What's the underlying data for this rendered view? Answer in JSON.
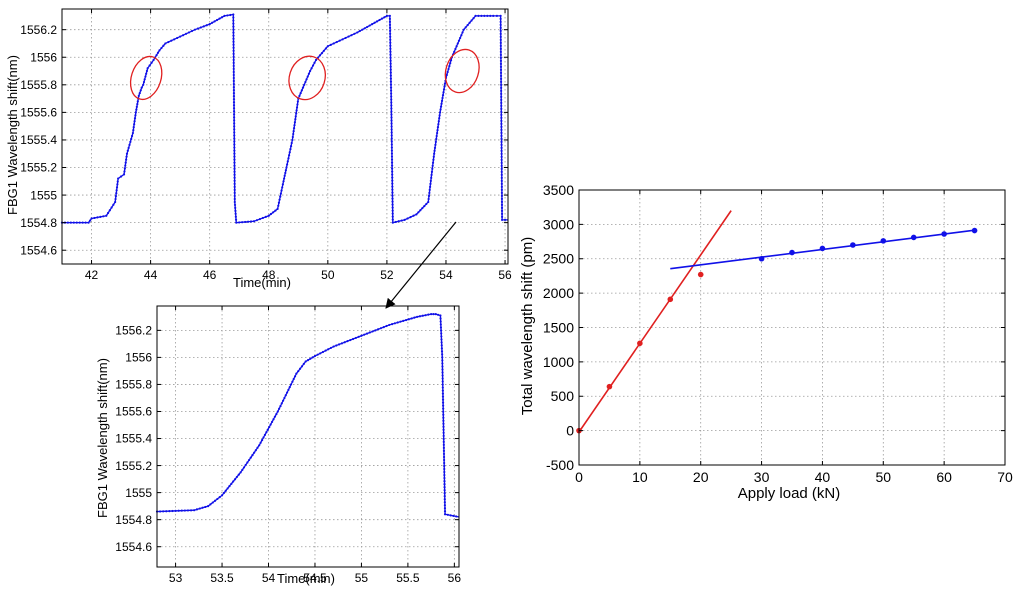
{
  "chart_data": [
    {
      "type": "line",
      "xlabel": "Time(min)",
      "ylabel": "FBG1 Wavelength shift(nm)",
      "xlim": [
        41,
        56.1
      ],
      "ylim": [
        1554.5,
        1556.35
      ],
      "xticks": [
        42,
        44,
        46,
        48,
        50,
        52,
        54,
        56
      ],
      "yticks": [
        1554.6,
        1554.8,
        1555,
        1555.2,
        1555.4,
        1555.6,
        1555.8,
        1556,
        1556.2
      ],
      "ytick_labels": [
        "1554.6",
        "1554.8",
        "1555",
        "1555.2",
        "1555.4",
        "1555.6",
        "1555.8",
        "1556",
        "1556.2"
      ],
      "grid": true,
      "series": [
        {
          "color": "#1010e8",
          "x": [
            41.0,
            41.9,
            42.0,
            42.5,
            42.8,
            42.9,
            43.1,
            43.2,
            43.4,
            43.5,
            43.6,
            43.7,
            43.75,
            43.9,
            44.1,
            44.3,
            44.5,
            45.0,
            45.5,
            46.0,
            46.5,
            46.8,
            46.85,
            46.9,
            47.5,
            48.0,
            48.3,
            48.5,
            48.6,
            48.8,
            48.9,
            49.0,
            49.2,
            49.4,
            49.6,
            49.8,
            50.0,
            50.5,
            51.0,
            51.5,
            52.0,
            52.1,
            52.15,
            52.2,
            52.6,
            53.0,
            53.4,
            53.6,
            53.8,
            54.0,
            54.2,
            54.4,
            54.6,
            54.8,
            55.0,
            55.3,
            55.6,
            55.85,
            55.9,
            56.1
          ],
          "y": [
            1554.8,
            1554.8,
            1554.83,
            1554.85,
            1554.95,
            1555.12,
            1555.15,
            1555.3,
            1555.45,
            1555.6,
            1555.72,
            1555.78,
            1555.8,
            1555.92,
            1555.98,
            1556.05,
            1556.1,
            1556.15,
            1556.2,
            1556.24,
            1556.3,
            1556.31,
            1554.95,
            1554.8,
            1554.81,
            1554.85,
            1554.9,
            1555.1,
            1555.2,
            1555.4,
            1555.55,
            1555.7,
            1555.8,
            1555.9,
            1555.98,
            1556.03,
            1556.08,
            1556.13,
            1556.18,
            1556.24,
            1556.3,
            1556.3,
            1555.65,
            1554.8,
            1554.82,
            1554.86,
            1554.95,
            1555.3,
            1555.6,
            1555.85,
            1556.0,
            1556.1,
            1556.2,
            1556.25,
            1556.3,
            1556.3,
            1556.3,
            1556.3,
            1554.82,
            1554.82
          ]
        }
      ],
      "annotations": [
        {
          "shape": "ellipse",
          "color": "#e02020",
          "cx": 43.85,
          "cy": 1555.85,
          "rx_data": 0.5,
          "ry_data": 0.16
        },
        {
          "shape": "ellipse",
          "color": "#e02020",
          "cx": 49.3,
          "cy": 1555.85,
          "rx_data": 0.6,
          "ry_data": 0.16
        },
        {
          "shape": "ellipse",
          "color": "#e02020",
          "cx": 54.55,
          "cy": 1555.9,
          "rx_data": 0.55,
          "ry_data": 0.16
        }
      ]
    },
    {
      "type": "line",
      "xlabel": "Time(min)",
      "ylabel": "FBG1 Wavelength shift(nm)",
      "xlim": [
        52.8,
        56.05
      ],
      "ylim": [
        1554.45,
        1556.38
      ],
      "xticks": [
        53,
        53.5,
        54,
        54.5,
        55,
        55.5,
        56
      ],
      "xtick_labels": [
        "53",
        "53.5",
        "54",
        "54.5",
        "55",
        "55.5",
        "56"
      ],
      "yticks": [
        1554.6,
        1554.8,
        1555,
        1555.2,
        1555.4,
        1555.6,
        1555.8,
        1556,
        1556.2
      ],
      "ytick_labels": [
        "1554.6",
        "1554.8",
        "1555",
        "1555.2",
        "1555.4",
        "1555.6",
        "1555.8",
        "1556",
        "1556.2"
      ],
      "grid": true,
      "series": [
        {
          "color": "#1010e8",
          "x": [
            52.8,
            53.2,
            53.35,
            53.5,
            53.7,
            53.9,
            54.1,
            54.3,
            54.4,
            54.5,
            54.7,
            55.0,
            55.3,
            55.6,
            55.75,
            55.8,
            55.85,
            55.87,
            55.9,
            56.05
          ],
          "y": [
            1554.86,
            1554.87,
            1554.9,
            1554.98,
            1555.15,
            1555.35,
            1555.6,
            1555.88,
            1555.97,
            1556.01,
            1556.08,
            1556.16,
            1556.24,
            1556.3,
            1556.32,
            1556.32,
            1556.31,
            1556.0,
            1554.84,
            1554.82
          ]
        }
      ]
    },
    {
      "type": "scatter",
      "xlabel": "Apply load (kN)",
      "ylabel": "Total wavelength shift (pm)",
      "xlim": [
        0,
        70
      ],
      "ylim": [
        -500,
        3500
      ],
      "xticks": [
        0,
        10,
        20,
        30,
        40,
        50,
        60,
        70
      ],
      "yticks": [
        -500,
        0,
        500,
        1000,
        1500,
        2000,
        2500,
        3000,
        3500
      ],
      "grid": true,
      "series": [
        {
          "color": "#e02020",
          "x": [
            0,
            5,
            10,
            15,
            20
          ],
          "y": [
            0,
            640,
            1270,
            1910,
            2270
          ],
          "fit_line": {
            "x": [
              0,
              25
            ],
            "y": [
              -20,
              3200
            ]
          }
        },
        {
          "color": "#1010e8",
          "x": [
            30,
            35,
            40,
            45,
            50,
            55,
            60,
            65
          ],
          "y": [
            2500,
            2590,
            2650,
            2700,
            2760,
            2810,
            2860,
            2910
          ],
          "fit_line": {
            "x": [
              15,
              65
            ],
            "y": [
              2355,
              2915
            ]
          }
        }
      ]
    }
  ]
}
